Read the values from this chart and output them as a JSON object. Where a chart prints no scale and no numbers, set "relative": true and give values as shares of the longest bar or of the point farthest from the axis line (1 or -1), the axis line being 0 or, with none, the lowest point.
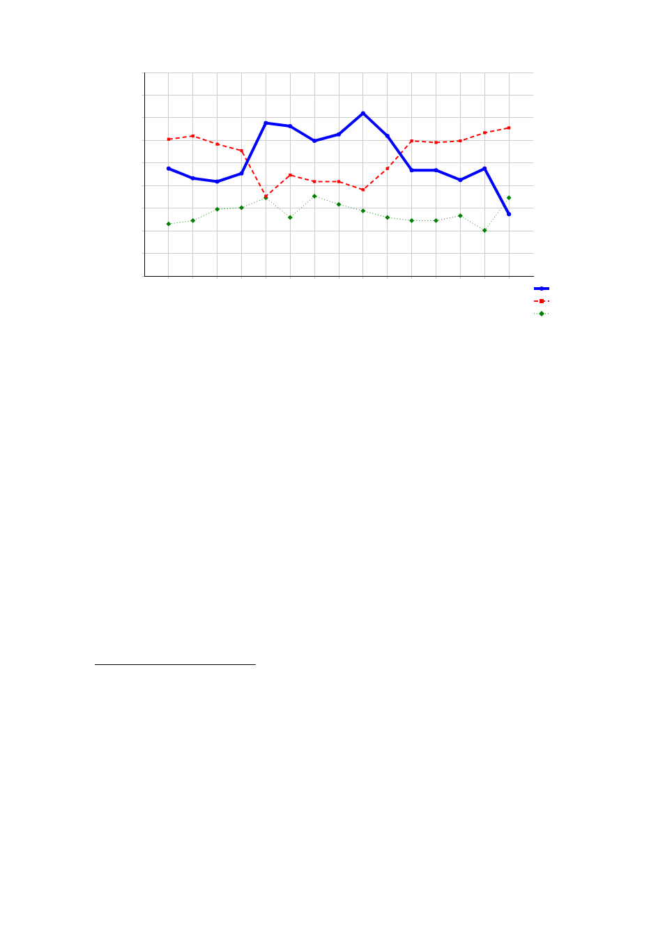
{
  "chart_data": {
    "type": "line",
    "relative": true,
    "categories": [
      null,
      null,
      null,
      null,
      null,
      null,
      null,
      null,
      null,
      null,
      null,
      null,
      null,
      null,
      null
    ],
    "series": [
      {
        "color": "#0000ff",
        "marker": "circle",
        "line_style": "solid",
        "values": [
          0.66,
          0.6,
          0.58,
          0.63,
          0.94,
          0.92,
          0.83,
          0.87,
          1,
          0.86,
          0.65,
          0.65,
          0.59,
          0.66,
          0.38
        ]
      },
      {
        "color": "#ff0000",
        "marker": "square",
        "line_style": "dashed",
        "values": [
          0.84,
          0.86,
          0.81,
          0.77,
          0.49,
          0.62,
          0.58,
          0.58,
          0.53,
          0.66,
          0.83,
          0.82,
          0.83,
          0.88,
          0.91
        ]
      },
      {
        "color": "#008000",
        "marker": "diamond",
        "line_style": "dotted",
        "values": [
          0.32,
          0.34,
          0.41,
          0.42,
          0.48,
          0.36,
          0.49,
          0.44,
          0.4,
          0.36,
          0.34,
          0.34,
          0.37,
          0.28,
          0.48
        ]
      }
    ],
    "grid": true
  }
}
